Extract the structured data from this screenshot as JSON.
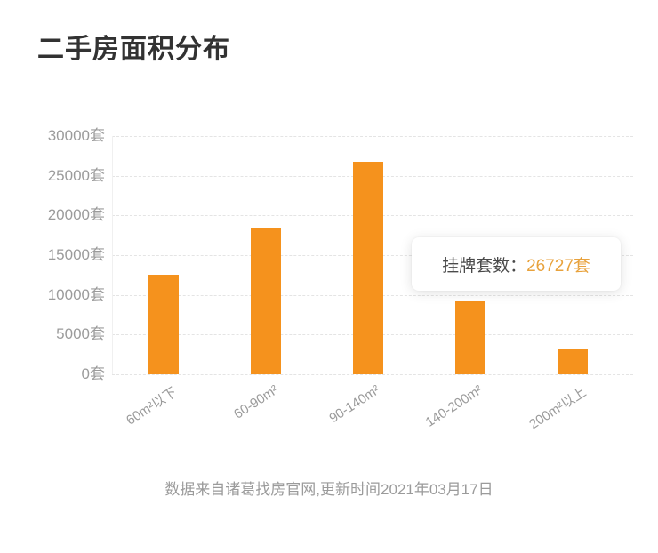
{
  "title": "二手房面积分布",
  "tooltip": {
    "label": "挂牌套数：",
    "value": "26727套"
  },
  "footer": "数据来自诸葛找房官网,更新时间2021年03月17日",
  "colors": {
    "bar": "#F5921D",
    "tooltip_value": "#E8A23C",
    "axis_label": "#9b9b9b",
    "grid": "#e4e4e4",
    "title": "#323232"
  },
  "chart_data": {
    "type": "bar",
    "title": "二手房面积分布",
    "categories": [
      "60m²以下",
      "60-90m²",
      "90-140m²",
      "140-200m²",
      "200m²以上"
    ],
    "values": [
      12500,
      18500,
      26727,
      9200,
      3200
    ],
    "highlighted_value": 26727,
    "tooltip_text": "挂牌套数：26727套",
    "unit_suffix": "套",
    "y_ticks": [
      0,
      5000,
      10000,
      15000,
      20000,
      25000,
      30000
    ],
    "ylim": [
      0,
      30000
    ],
    "xlabel": "",
    "ylabel": "",
    "grid": "dashed",
    "legend": "none",
    "source_note": "数据来自诸葛找房官网,更新时间2021年03月17日"
  }
}
